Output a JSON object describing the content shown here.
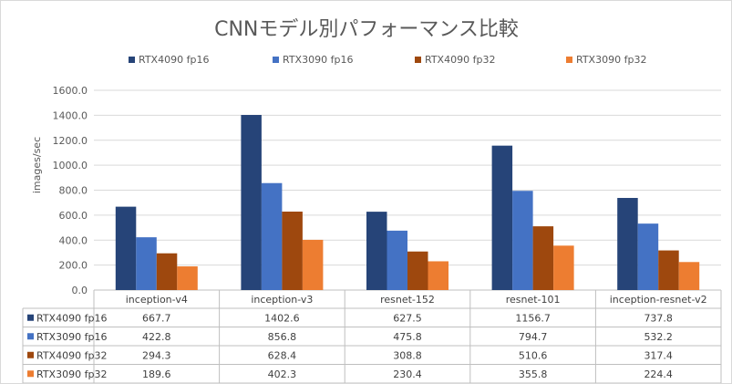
{
  "chart_data": {
    "type": "bar",
    "title": "CNNモデル別パフォーマンス比較",
    "ylabel": "images/sec",
    "xlabel": "",
    "ylim": [
      0,
      1600
    ],
    "yticks": [
      "0.0",
      "200.0",
      "400.0",
      "600.0",
      "800.0",
      "1000.0",
      "1200.0",
      "1400.0",
      "1600.0"
    ],
    "grid": true,
    "legend_position": "top",
    "data_table": true,
    "categories": [
      "inception-v4",
      "inception-v3",
      "resnet-152",
      "resnet-101",
      "inception-resnet-v2"
    ],
    "series": [
      {
        "name": "RTX4090 fp16",
        "color": "#264478",
        "values": [
          667.7,
          1402.6,
          627.5,
          1156.7,
          737.8
        ],
        "labels": [
          "667.7",
          "1402.6",
          "627.5",
          "1156.7",
          "737.8"
        ]
      },
      {
        "name": "RTX3090 fp16",
        "color": "#4472C4",
        "values": [
          422.8,
          856.8,
          475.8,
          794.7,
          532.2
        ],
        "labels": [
          "422.8",
          "856.8",
          "475.8",
          "794.7",
          "532.2"
        ]
      },
      {
        "name": "RTX4090 fp32",
        "color": "#9E480E",
        "values": [
          294.3,
          628.4,
          308.8,
          510.6,
          317.4
        ],
        "labels": [
          "294.3",
          "628.4",
          "308.8",
          "510.6",
          "317.4"
        ]
      },
      {
        "name": "RTX3090 fp32",
        "color": "#ED7D31",
        "values": [
          189.6,
          402.3,
          230.4,
          355.8,
          224.4
        ],
        "labels": [
          "189.6",
          "402.3",
          "230.4",
          "355.8",
          "224.4"
        ]
      }
    ]
  }
}
